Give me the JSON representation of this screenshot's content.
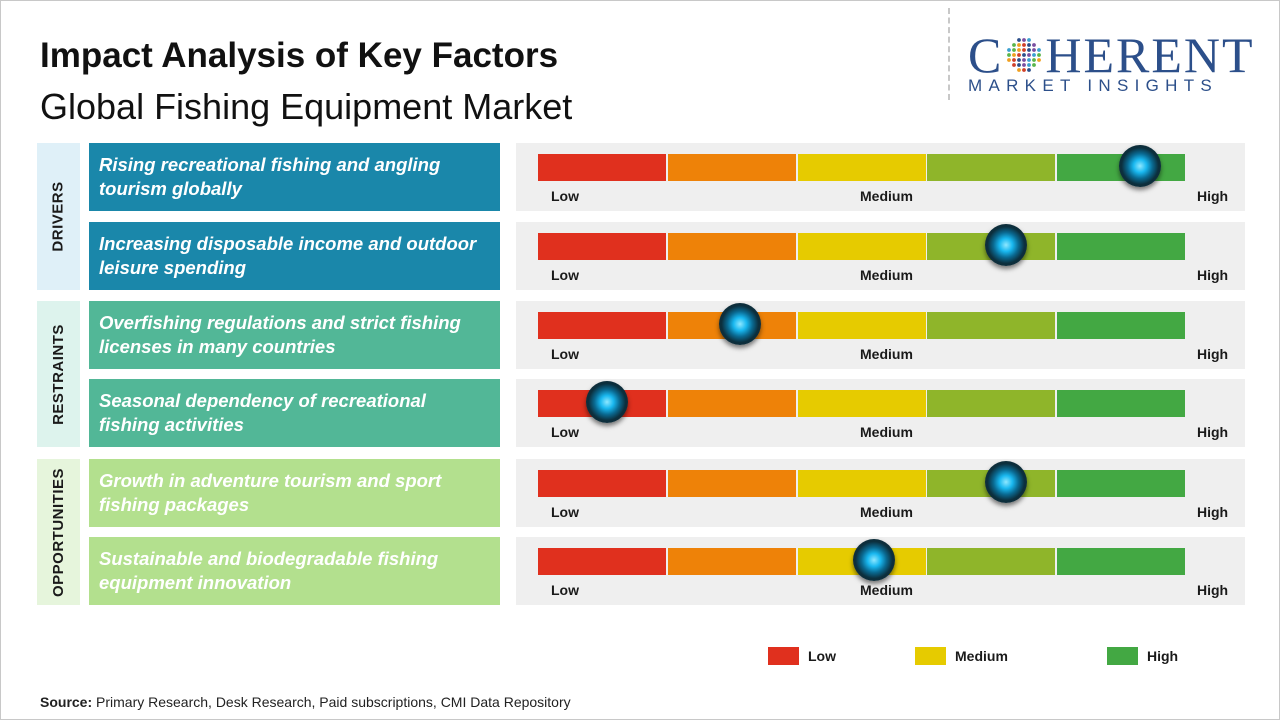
{
  "header": {
    "title": "Impact Analysis of Key Factors",
    "subtitle": "Global Fishing Equipment Market"
  },
  "logo": {
    "main_left": "C",
    "main_right": "HERENT",
    "sub": "MARKET INSIGHTS"
  },
  "colors": {
    "low": "#e0301e",
    "low_mid": "#ee8208",
    "medium": "#e6cb00",
    "mid_high": "#8fb52a",
    "high": "#43a843",
    "drivers": "#1a87aa",
    "restraints": "#52b797",
    "opportunities": "#b3e08e"
  },
  "groups": [
    {
      "label": "DRIVERS",
      "background": "#dff0f8",
      "color": "#1a87aa"
    },
    {
      "label": "RESTRAINTS",
      "background": "#ddf3ed",
      "color": "#52b797"
    },
    {
      "label": "OPPORTUNITIES",
      "background": "#e6f5dc",
      "color": "#b3e08e"
    }
  ],
  "chart_data": {
    "type": "gauge",
    "scale": [
      "Low",
      "Medium",
      "High"
    ],
    "range": [
      0,
      5
    ],
    "factors": [
      {
        "group": "DRIVERS",
        "label": "Rising recreational fishing and angling tourism globally",
        "value": 4.65
      },
      {
        "group": "DRIVERS",
        "label": "Increasing disposable income and outdoor leisure spending",
        "value": 3.62
      },
      {
        "group": "RESTRAINTS",
        "label": "Overfishing regulations and strict fishing licenses in many countries",
        "value": 1.56
      },
      {
        "group": "RESTRAINTS",
        "label": "Seasonal dependency of recreational fishing activities",
        "value": 0.53
      },
      {
        "group": "OPPORTUNITIES",
        "label": "Growth in adventure tourism and sport fishing packages",
        "value": 3.62
      },
      {
        "group": "OPPORTUNITIES",
        "label": "Sustainable and biodegradable fishing equipment innovation",
        "value": 2.6
      }
    ],
    "legend": [
      {
        "label": "Low",
        "color": "#e0301e"
      },
      {
        "label": "Medium",
        "color": "#e6cb00"
      },
      {
        "label": "High",
        "color": "#43a843"
      }
    ]
  },
  "source": {
    "prefix": "Source:",
    "text": " Primary Research, Desk Research, Paid subscriptions, CMI Data Repository"
  }
}
